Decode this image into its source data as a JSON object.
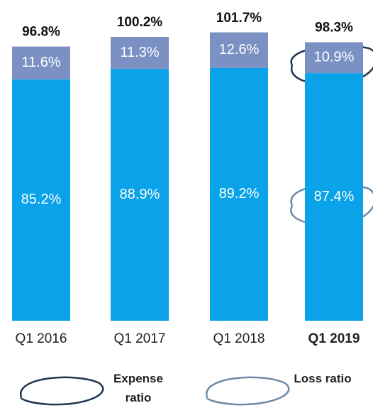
{
  "chart_data": {
    "type": "stacked-bar",
    "categories": [
      "Q1 2016",
      "Q1 2017",
      "Q1 2018",
      "Q1 2019"
    ],
    "highlight": "Q1 2019",
    "series": [
      {
        "name": "Loss ratio",
        "color": "#0aa2e8",
        "values": [
          85.2,
          88.9,
          89.2,
          87.4
        ],
        "value_labels": [
          "85.2%",
          "88.9%",
          "89.2%",
          "87.4%"
        ]
      },
      {
        "name": "Expense ratio",
        "color": "#7b91c4",
        "values": [
          11.6,
          11.3,
          12.6,
          10.9
        ],
        "value_labels": [
          "11.6%",
          "11.3%",
          "12.6%",
          "10.9%"
        ]
      }
    ],
    "totals": [
      96.8,
      100.2,
      101.7,
      98.3
    ],
    "total_labels": [
      "96.8%",
      "100.2%",
      "101.7%",
      "98.3%"
    ]
  }
}
